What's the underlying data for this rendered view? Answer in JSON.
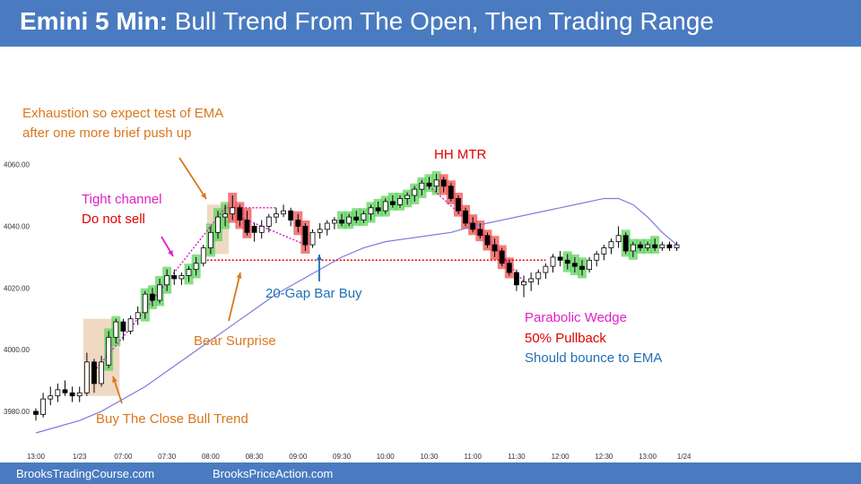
{
  "header": {
    "title_bold": "Emini 5 Min:",
    "title_rest": "Bull Trend From The Open, Then Trading Range"
  },
  "footer": {
    "left": "BrooksTradingCourse.com",
    "right": "BrooksPriceAction.com"
  },
  "annotations": {
    "exhaustion_1": "Exhaustion so expect test of EMA",
    "exhaustion_2": "after one more brief push up",
    "tight_1": "Tight channel",
    "tight_2": "Do not sell",
    "hh_mtr": "HH MTR",
    "bear_surprise": "Bear Surprise",
    "gap_bar": "20-Gap Bar Buy",
    "btc": "Buy The Close Bull Trend",
    "wedge_1": "Parabolic Wedge",
    "wedge_2": "50% Pullback",
    "wedge_3": "Should bounce to EMA"
  },
  "colors": {
    "header_bg": "#4a7bc0",
    "orange": "#d9771e",
    "magenta": "#e020c8",
    "red": "#e00000",
    "blue": "#1f6fb5",
    "ema": "#7b7be0",
    "green_highlight": "#5fd35f",
    "red_highlight": "#f05050",
    "tan_highlight": "#e8c9a8"
  },
  "chart_data": {
    "type": "candlestick",
    "y_ticks": [
      "4060.00",
      "4040.00",
      "4020.00",
      "4000.00",
      "3980.00"
    ],
    "y_tick_values": [
      4060,
      4040,
      4020,
      4000,
      3980
    ],
    "ylim": [
      3973,
      4075
    ],
    "x_ticks": [
      "13:00",
      "1/23",
      "07:00",
      "07:30",
      "08:00",
      "08:30",
      "09:00",
      "09:30",
      "10:00",
      "10:30",
      "11:00",
      "11:30",
      "12:00",
      "12:30",
      "13:00",
      "1/24"
    ],
    "x_tick_bars": [
      0,
      6,
      12,
      18,
      24,
      30,
      36,
      42,
      48,
      54,
      60,
      66,
      72,
      78,
      84,
      89
    ],
    "bar_count": 89,
    "ohlc": [
      [
        3980,
        3981,
        3977,
        3979
      ],
      [
        3979,
        3986,
        3978,
        3984
      ],
      [
        3984,
        3988,
        3982,
        3985
      ],
      [
        3985,
        3989,
        3983,
        3987
      ],
      [
        3987,
        3990,
        3985,
        3986
      ],
      [
        3986,
        3988,
        3983,
        3985
      ],
      [
        3985,
        3988,
        3983,
        3986
      ],
      [
        3986,
        3999,
        3985,
        3996
      ],
      [
        3996,
        3997,
        3986,
        3989
      ],
      [
        3989,
        3998,
        3988,
        3996
      ],
      [
        3995,
        4006,
        3994,
        4004
      ],
      [
        4004,
        4010,
        4002,
        4009
      ],
      [
        4009,
        4010,
        4003,
        4006
      ],
      [
        4006,
        4011,
        4005,
        4010
      ],
      [
        4010,
        4014,
        4008,
        4012
      ],
      [
        4012,
        4019,
        4010,
        4018
      ],
      [
        4018,
        4020,
        4014,
        4016
      ],
      [
        4016,
        4023,
        4015,
        4021
      ],
      [
        4021,
        4026,
        4019,
        4024
      ],
      [
        4024,
        4026,
        4021,
        4023
      ],
      [
        4023,
        4025,
        4021,
        4024
      ],
      [
        4024,
        4027,
        4022,
        4026
      ],
      [
        4026,
        4030,
        4024,
        4028
      ],
      [
        4028,
        4034,
        4027,
        4033
      ],
      [
        4033,
        4040,
        4031,
        4038
      ],
      [
        4038,
        4045,
        4036,
        4043
      ],
      [
        4043,
        4047,
        4040,
        4044
      ],
      [
        4044,
        4050,
        4042,
        4046
      ],
      [
        4046,
        4047,
        4040,
        4042
      ],
      [
        4042,
        4045,
        4037,
        4038
      ],
      [
        4040,
        4041,
        4035,
        4038
      ],
      [
        4038,
        4042,
        4036,
        4040
      ],
      [
        4040,
        4044,
        4038,
        4043
      ],
      [
        4043,
        4046,
        4041,
        4044
      ],
      [
        4044,
        4047,
        4043,
        4045
      ],
      [
        4045,
        4046,
        4040,
        4042
      ],
      [
        4042,
        4044,
        4038,
        4040
      ],
      [
        4040,
        4041,
        4032,
        4034
      ],
      [
        4034,
        4039,
        4033,
        4038
      ],
      [
        4038,
        4041,
        4036,
        4039
      ],
      [
        4039,
        4042,
        4037,
        4041
      ],
      [
        4041,
        4043,
        4039,
        4042
      ],
      [
        4042,
        4044,
        4040,
        4041
      ],
      [
        4041,
        4044,
        4040,
        4043
      ],
      [
        4043,
        4045,
        4041,
        4042
      ],
      [
        4042,
        4045,
        4041,
        4044
      ],
      [
        4044,
        4047,
        4042,
        4046
      ],
      [
        4046,
        4048,
        4044,
        4045
      ],
      [
        4045,
        4049,
        4044,
        4048
      ],
      [
        4048,
        4050,
        4046,
        4047
      ],
      [
        4047,
        4050,
        4046,
        4049
      ],
      [
        4049,
        4051,
        4047,
        4050
      ],
      [
        4050,
        4053,
        4048,
        4052
      ],
      [
        4052,
        4055,
        4050,
        4054
      ],
      [
        4054,
        4056,
        4052,
        4053
      ],
      [
        4053,
        4057,
        4051,
        4055
      ],
      [
        4055,
        4056,
        4051,
        4053
      ],
      [
        4053,
        4054,
        4048,
        4049
      ],
      [
        4049,
        4050,
        4044,
        4045
      ],
      [
        4045,
        4046,
        4040,
        4041
      ],
      [
        4041,
        4043,
        4038,
        4039
      ],
      [
        4039,
        4041,
        4036,
        4037
      ],
      [
        4037,
        4038,
        4033,
        4034
      ],
      [
        4034,
        4036,
        4030,
        4032
      ],
      [
        4032,
        4033,
        4027,
        4028
      ],
      [
        4028,
        4029,
        4024,
        4025
      ],
      [
        4025,
        4026,
        4019,
        4021
      ],
      [
        4021,
        4024,
        4017,
        4022
      ],
      [
        4022,
        4025,
        4019,
        4023
      ],
      [
        4023,
        4026,
        4021,
        4025
      ],
      [
        4025,
        4028,
        4023,
        4027
      ],
      [
        4027,
        4031,
        4025,
        4030
      ],
      [
        4030,
        4032,
        4027,
        4029
      ],
      [
        4029,
        4031,
        4026,
        4028
      ],
      [
        4028,
        4030,
        4025,
        4027
      ],
      [
        4027,
        4029,
        4024,
        4026
      ],
      [
        4026,
        4030,
        4025,
        4029
      ],
      [
        4029,
        4032,
        4027,
        4031
      ],
      [
        4031,
        4034,
        4029,
        4033
      ],
      [
        4033,
        4036,
        4031,
        4035
      ],
      [
        4035,
        4040,
        4033,
        4037
      ],
      [
        4037,
        4038,
        4031,
        4032
      ],
      [
        4032,
        4035,
        4030,
        4034
      ],
      [
        4034,
        4035,
        4032,
        4033
      ],
      [
        4033,
        4035,
        4032,
        4034
      ],
      [
        4034,
        4036,
        4032,
        4033
      ],
      [
        4033,
        4035,
        4032,
        4034
      ],
      [
        4034,
        4035,
        4032,
        4033
      ],
      [
        4033,
        4035,
        4032,
        4034
      ]
    ],
    "ema": [
      3973,
      3975,
      3977,
      3980,
      3984,
      3988,
      3993,
      3998,
      4003,
      4008,
      4013,
      4018,
      4022,
      4026,
      4030,
      4033,
      4035,
      4036,
      4037,
      4038,
      4040,
      4041,
      4042,
      4043,
      4044,
      4045,
      4046,
      4047,
      4048,
      4049,
      4049,
      4047,
      4043,
      4038,
      4034,
      4031,
      4029,
      4029,
      4030,
      4031,
      4031,
      4033,
      4035
    ],
    "ema_bars": [
      0,
      3,
      6,
      9,
      12,
      15,
      18,
      21,
      24,
      27,
      30,
      33,
      36,
      39,
      42,
      45,
      48,
      51,
      54,
      57,
      60,
      62,
      64,
      66,
      68,
      70,
      72,
      74,
      76,
      78,
      80,
      82,
      84,
      86,
      88,
      88,
      88,
      88,
      88,
      88,
      88,
      88,
      88
    ],
    "breakout_level": 4029,
    "green_bars": [
      10,
      11,
      15,
      16,
      17,
      18,
      21,
      22,
      24,
      25,
      26,
      42,
      43,
      44,
      45,
      46,
      47,
      48,
      49,
      50,
      51,
      52,
      53,
      54,
      55,
      73,
      74,
      75,
      81,
      82,
      83,
      84,
      85
    ],
    "red_bars": [
      27,
      28,
      29,
      36,
      37,
      56,
      57,
      58,
      59,
      60,
      61,
      62,
      63,
      64,
      65
    ]
  }
}
